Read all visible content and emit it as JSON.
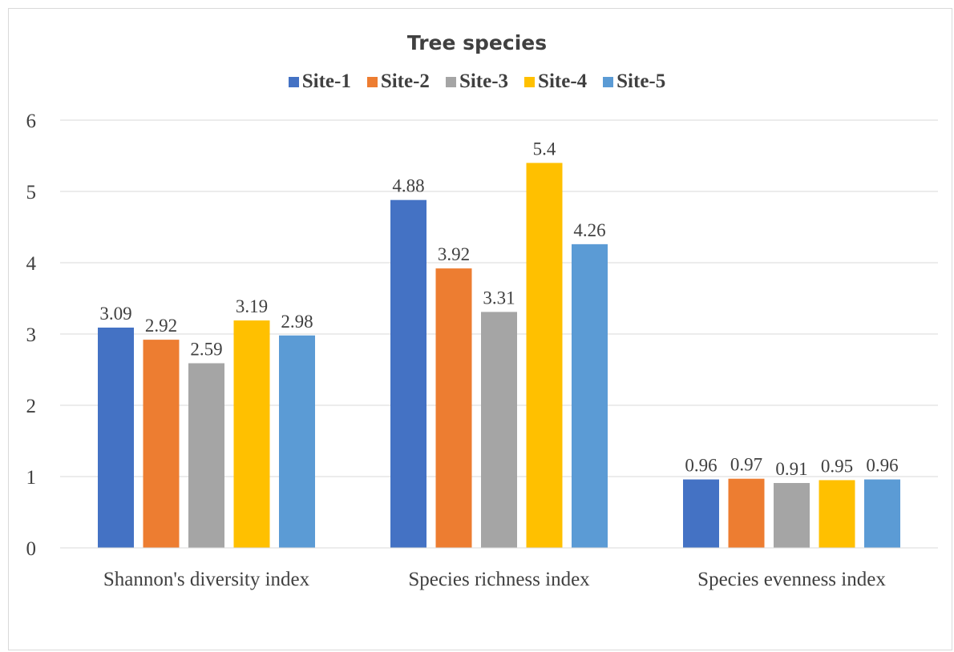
{
  "chart_data": {
    "type": "bar",
    "title": "Tree species",
    "categories": [
      "Shannon's diversity index",
      "Species richness index",
      "Species evenness index"
    ],
    "series": [
      {
        "name": "Site-1",
        "color": "#4472c4",
        "values": [
          3.09,
          4.88,
          0.96
        ],
        "labels": [
          "3.09",
          "4.88",
          "0.96"
        ]
      },
      {
        "name": "Site-2",
        "color": "#ed7d31",
        "values": [
          2.92,
          3.92,
          0.97
        ],
        "labels": [
          "2.92",
          "3.92",
          "0.97"
        ]
      },
      {
        "name": "Site-3",
        "color": "#a5a5a5",
        "values": [
          2.59,
          3.31,
          0.91
        ],
        "labels": [
          "2.59",
          "3.31",
          "0.91"
        ]
      },
      {
        "name": "Site-4",
        "color": "#ffc000",
        "values": [
          3.19,
          5.4,
          0.95
        ],
        "labels": [
          "3.19",
          "5.4",
          "0.95"
        ]
      },
      {
        "name": "Site-5",
        "color": "#5b9bd5",
        "values": [
          2.98,
          4.26,
          0.96
        ],
        "labels": [
          "2.98",
          "4.26",
          "0.96"
        ]
      }
    ],
    "ylim": [
      0,
      6
    ],
    "yticks": [
      "0",
      "1",
      "2",
      "3",
      "4",
      "5",
      "6"
    ],
    "xlabel": "",
    "ylabel": "",
    "grid": true,
    "legend_position": "top"
  }
}
